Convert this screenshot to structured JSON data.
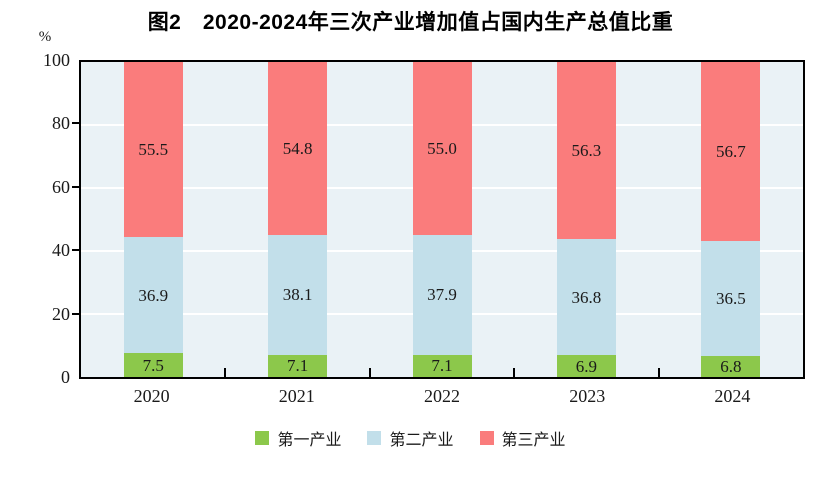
{
  "title": "图2　2020-2024年三次产业增加值占国内生产总值比重",
  "y_axis_unit": "%",
  "chart_data": {
    "type": "bar",
    "stacked": true,
    "title": "图2　2020-2024年三次产业增加值占国内生产总值比重",
    "xlabel": "",
    "ylabel": "%",
    "ylim": [
      0,
      100
    ],
    "y_ticks": [
      0,
      20,
      40,
      60,
      80,
      100
    ],
    "grid": true,
    "legend_position": "bottom",
    "categories": [
      "2020",
      "2021",
      "2022",
      "2023",
      "2024"
    ],
    "series": [
      {
        "name": "第一产业",
        "color": "#8CC84B",
        "values": [
          7.5,
          7.1,
          7.1,
          6.9,
          6.8
        ]
      },
      {
        "name": "第二产业",
        "color": "#C2DFEA",
        "values": [
          36.9,
          38.1,
          37.9,
          36.8,
          36.5
        ]
      },
      {
        "name": "第三产业",
        "color": "#FA7C7C",
        "values": [
          55.5,
          54.8,
          55.0,
          56.3,
          56.7
        ]
      }
    ],
    "data_label_decimals": 1
  },
  "colors": {
    "plot_background": "#EAF2F6",
    "gridline": "#FFFFFF",
    "axis": "#000000",
    "label_text": "#1A1A1A"
  }
}
